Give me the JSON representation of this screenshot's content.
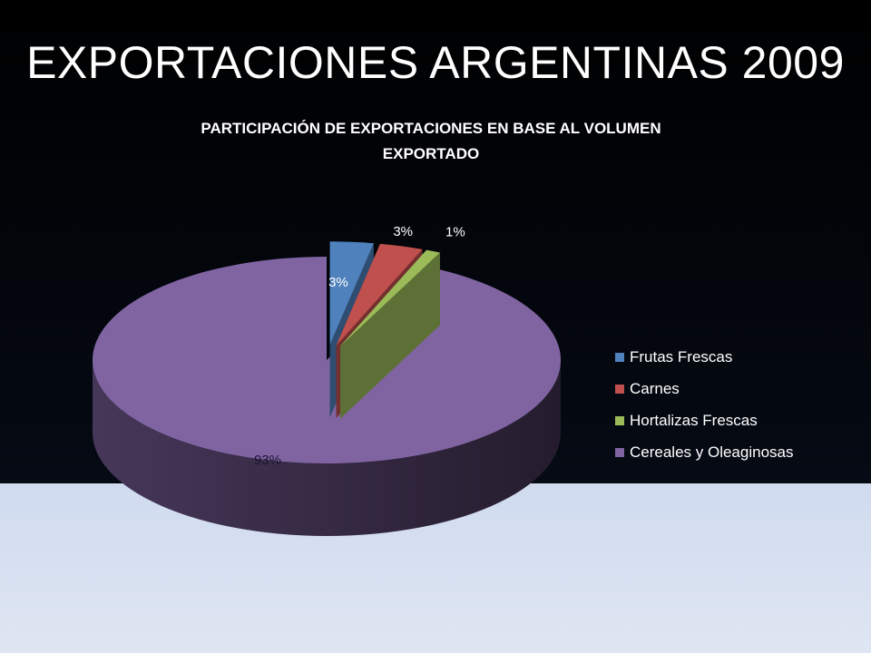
{
  "slide": {
    "title": "EXPORTACIONES ARGENTINAS 2009"
  },
  "chart_data": {
    "type": "pie",
    "title_lines": [
      "PARTICIPACIÓN DE EXPORTACIONES EN BASE AL VOLUMEN",
      "EXPORTADO"
    ],
    "categories": [
      "Frutas Frescas",
      "Carnes",
      "Hortalizas Frescas",
      "Cereales y Oleaginosas"
    ],
    "values": [
      3,
      3,
      1,
      93
    ],
    "data_labels": [
      "3%",
      "3%",
      "1%",
      "93%"
    ],
    "colors": [
      "#4f81bd",
      "#c0504d",
      "#9bbb59",
      "#8064a2"
    ],
    "legend_position": "right",
    "style": "3d-exploded"
  }
}
